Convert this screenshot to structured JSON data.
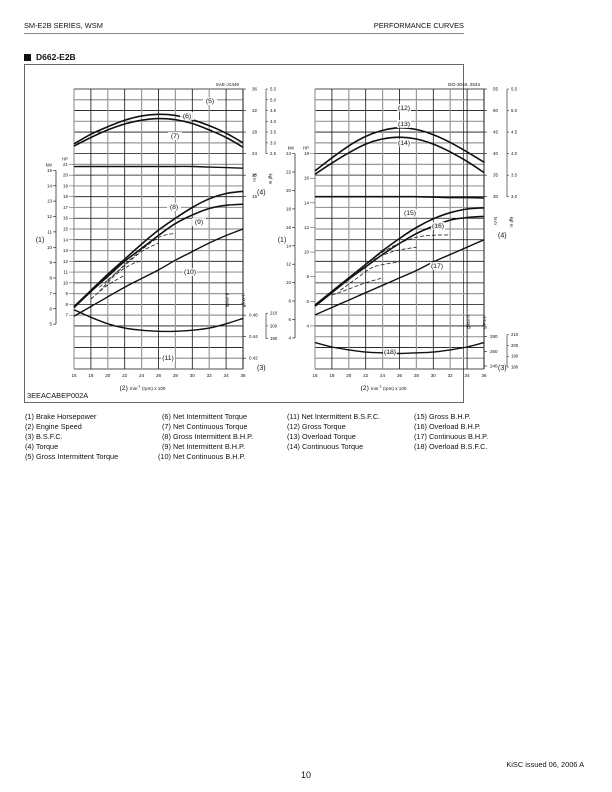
{
  "header": {
    "left": "SM-E2B SERIES, WSM",
    "right": "PERFORMANCE CURVES"
  },
  "section": {
    "title": "D662-E2B"
  },
  "figure": {
    "code": "3EEACABEP002A"
  },
  "chart_data": [
    {
      "type": "line",
      "title": "SAE-J1349",
      "x": [
        16,
        18,
        20,
        22,
        24,
        26,
        28,
        30,
        32,
        34,
        36
      ],
      "xlabel": "(2) min-1 (rpm) x 100",
      "xlim": [
        16,
        36
      ],
      "axes": {
        "hp": {
          "label": "HP",
          "ticks": [
            7,
            8,
            9,
            10,
            11,
            12,
            13,
            14,
            15,
            16,
            17,
            18,
            19,
            20,
            21
          ]
        },
        "kw": {
          "label": "kW",
          "ticks": [
            5,
            6,
            7,
            8,
            9,
            10,
            11,
            12,
            13,
            14,
            15
          ]
        },
        "torque_nm": {
          "label": "N·m",
          "ticks": [
            16,
            20,
            24,
            28,
            32,
            36
          ]
        },
        "torque_kgfm": {
          "label": "kgf·m",
          "ticks": [
            2.5,
            3.0,
            3.5,
            4.0,
            4.5,
            5.0,
            5.5
          ]
        },
        "bsfc_lb": {
          "label": "lb/HP·h",
          "ticks": [
            0.42,
            0.44,
            0.46
          ]
        },
        "bsfc_g": {
          "label": "g/kW·h",
          "ticks": [
            190,
            200,
            210
          ]
        }
      },
      "axis_labels": {
        "power": "(1)",
        "speed": "(2)",
        "bsfc": "(3)",
        "torque": "(4)"
      },
      "series": [
        {
          "name": "(5) Gross Intermittent Torque",
          "unit": "N·m",
          "values": [
            25.8,
            27.6,
            29.0,
            30.2,
            31.0,
            31.3,
            31.1,
            30.3,
            29.2,
            27.8,
            26.0
          ]
        },
        {
          "name": "(6) Net Intermittent Torque",
          "unit": "N·m",
          "values": [
            25.4,
            27.0,
            28.4,
            29.5,
            30.2,
            30.5,
            30.3,
            29.6,
            28.4,
            27.0,
            25.2
          ]
        },
        {
          "name": "(7) Net Continuous Torque",
          "unit": "N·m",
          "values": [
            21.6,
            21.6,
            21.6,
            21.6,
            21.6,
            21.6,
            21.6,
            21.6,
            21.5,
            21.4,
            21.3
          ]
        },
        {
          "name": "(8) Gross Intermittent B.H.P.",
          "unit": "HP",
          "values": [
            7.8,
            9.3,
            10.8,
            12.2,
            13.6,
            14.9,
            16.0,
            17.0,
            17.8,
            18.3,
            18.5
          ]
        },
        {
          "name": "(9) Net Intermittent B.H.P.",
          "unit": "HP",
          "values": [
            7.7,
            9.2,
            10.6,
            12.0,
            13.2,
            14.4,
            15.5,
            16.3,
            16.9,
            17.2,
            17.3
          ]
        },
        {
          "name": "(10) Net Continuous B.H.P.",
          "unit": "HP",
          "values": [
            6.9,
            7.8,
            8.7,
            9.6,
            10.4,
            11.2,
            12.1,
            12.9,
            13.7,
            14.4,
            15.0
          ]
        },
        {
          "name": "(11) Net Intermittent B.S.F.C.",
          "unit": "lb/HP·h",
          "values": [
            0.465,
            0.458,
            0.452,
            0.448,
            0.446,
            0.445,
            0.445,
            0.446,
            0.448,
            0.452,
            0.457
          ]
        }
      ]
    },
    {
      "type": "line",
      "title": "ISO-3046, 2534",
      "x": [
        16,
        18,
        20,
        22,
        24,
        26,
        28,
        30,
        32,
        34,
        36
      ],
      "xlabel": "(2) min-1 (rpm) x 100",
      "xlim": [
        16,
        36
      ],
      "axes": {
        "hp": {
          "label": "HP",
          "ticks": [
            4,
            6,
            8,
            10,
            12,
            14,
            16,
            18,
            20,
            22,
            24
          ]
        },
        "kw": {
          "label": "kW",
          "ticks": [
            4,
            6,
            8,
            10,
            12,
            14,
            16,
            18
          ]
        },
        "torque_nm": {
          "label": "N·m",
          "ticks": [
            30,
            35,
            40,
            45,
            50,
            55
          ]
        },
        "torque_kgfm": {
          "label": "kgf·m",
          "ticks": [
            3.0,
            3.5,
            4.0,
            4.5,
            5.0,
            5.5
          ]
        },
        "bsfc_gkwh": {
          "label": "g/kW·h",
          "ticks": [
            240,
            260,
            280
          ]
        },
        "bsfc_gpsh": {
          "label": "g/PS·h",
          "ticks": [
            180,
            190,
            200,
            210
          ]
        }
      },
      "axis_labels": {
        "power": "(1)",
        "speed": "(2)",
        "bsfc": "(3)",
        "torque": "(4)"
      },
      "series": [
        {
          "name": "(12) Gross Torque",
          "unit": "N·m",
          "values": [
            36.0,
            39.0,
            41.8,
            44.0,
            45.4,
            46.0,
            45.6,
            44.4,
            42.6,
            40.4,
            38.0
          ]
        },
        {
          "name": "(13) Overload Torque",
          "unit": "N·m",
          "values": [
            35.2,
            37.8,
            40.2,
            42.2,
            43.4,
            43.8,
            43.4,
            42.2,
            40.4,
            38.2,
            35.6
          ]
        },
        {
          "name": "(14) Continuous Torque",
          "unit": "N·m",
          "values": [
            30.0,
            30.0,
            30.0,
            30.0,
            30.0,
            30.0,
            30.0,
            29.9,
            29.8,
            29.8,
            29.7
          ]
        },
        {
          "name": "(15) Gross B.H.P.",
          "unit": "kW",
          "values": [
            5.7,
            6.8,
            7.9,
            9.0,
            10.1,
            11.1,
            12.0,
            12.7,
            13.2,
            13.5,
            13.6
          ]
        },
        {
          "name": "(16) Overload B.H.P.",
          "unit": "kW",
          "values": [
            5.6,
            6.7,
            7.8,
            8.8,
            9.8,
            10.7,
            11.5,
            12.1,
            12.6,
            12.8,
            12.9
          ]
        },
        {
          "name": "(17) Continuous B.H.P.",
          "unit": "kW",
          "values": [
            4.9,
            5.5,
            6.1,
            6.7,
            7.3,
            7.9,
            8.5,
            9.2,
            9.8,
            10.4,
            11.0
          ]
        },
        {
          "name": "(18) Overload B.S.F.C.",
          "unit": "g/kW·h",
          "values": [
            272,
            266,
            262,
            259,
            258,
            257,
            258,
            259,
            262,
            266,
            272
          ]
        }
      ]
    }
  ],
  "left_chart": {
    "std": "SAE-J1349",
    "hp_unit": "HP",
    "kw_unit": "kW",
    "nm_unit": "N·m",
    "kgfm_unit": "kgf·m",
    "bsfc1_unit": "lb/HP·h",
    "bsfc2_unit": "g/kW·h",
    "label_power": "(1)",
    "label_bsfc": "(3)",
    "label_torque": "(4)",
    "xaxis_prefix": "(2)",
    "xaxis_unit": "min",
    "xaxis_sup": "-1",
    "xaxis_rest": "(rpm) x 100",
    "curve_labels": [
      "(5)",
      "(6)",
      "(7)",
      "(8)",
      "(9)",
      "(10)",
      "(11)"
    ]
  },
  "right_chart": {
    "std": "ISO-3046, 2534",
    "hp_unit": "HP",
    "kw_unit": "kW",
    "nm_unit": "N·m",
    "kgfm_unit": "kgf·m",
    "bsfc1_unit": "g/kW·h",
    "bsfc2_unit": "g/PS·h",
    "label_power": "(1)",
    "label_bsfc": "(3)",
    "label_torque": "(4)",
    "xaxis_prefix": "(2)",
    "xaxis_unit": "min",
    "xaxis_sup": "-1",
    "xaxis_rest": "(rpm) x 100",
    "curve_labels": [
      "(12)",
      "(13)",
      "(14)",
      "(15)",
      "(16)",
      "(17)",
      "(18)"
    ]
  },
  "legend": {
    "col1": [
      "(1)  Brake Horsepower",
      "(2)  Engine Speed",
      "(3)  B.S.F.C.",
      "(4)  Torque",
      "(5)  Gross Intermittent Torque"
    ],
    "col2": [
      "(6) Net Intermittent Torque",
      "(7) Net Continuous Torque",
      "(8) Gross Intermittent B.H.P.",
      "(9) Net Intermittent B.H.P.",
      "(10) Net Continuous B.H.P."
    ],
    "col3": [
      "(11) Net Intermittent B.S.F.C.",
      "(12) Gross Torque",
      "(13) Overload Torque",
      "(14) Continuous Torque"
    ],
    "col4": [
      "(15) Gross B.H.P.",
      "(16) Overload B.H.P.",
      "(17) Continuous B.H.P.",
      "(18) Overload B.S.F.C."
    ]
  },
  "footer": {
    "issued": "KiSC issued 06, 2006 A",
    "page": "10"
  }
}
